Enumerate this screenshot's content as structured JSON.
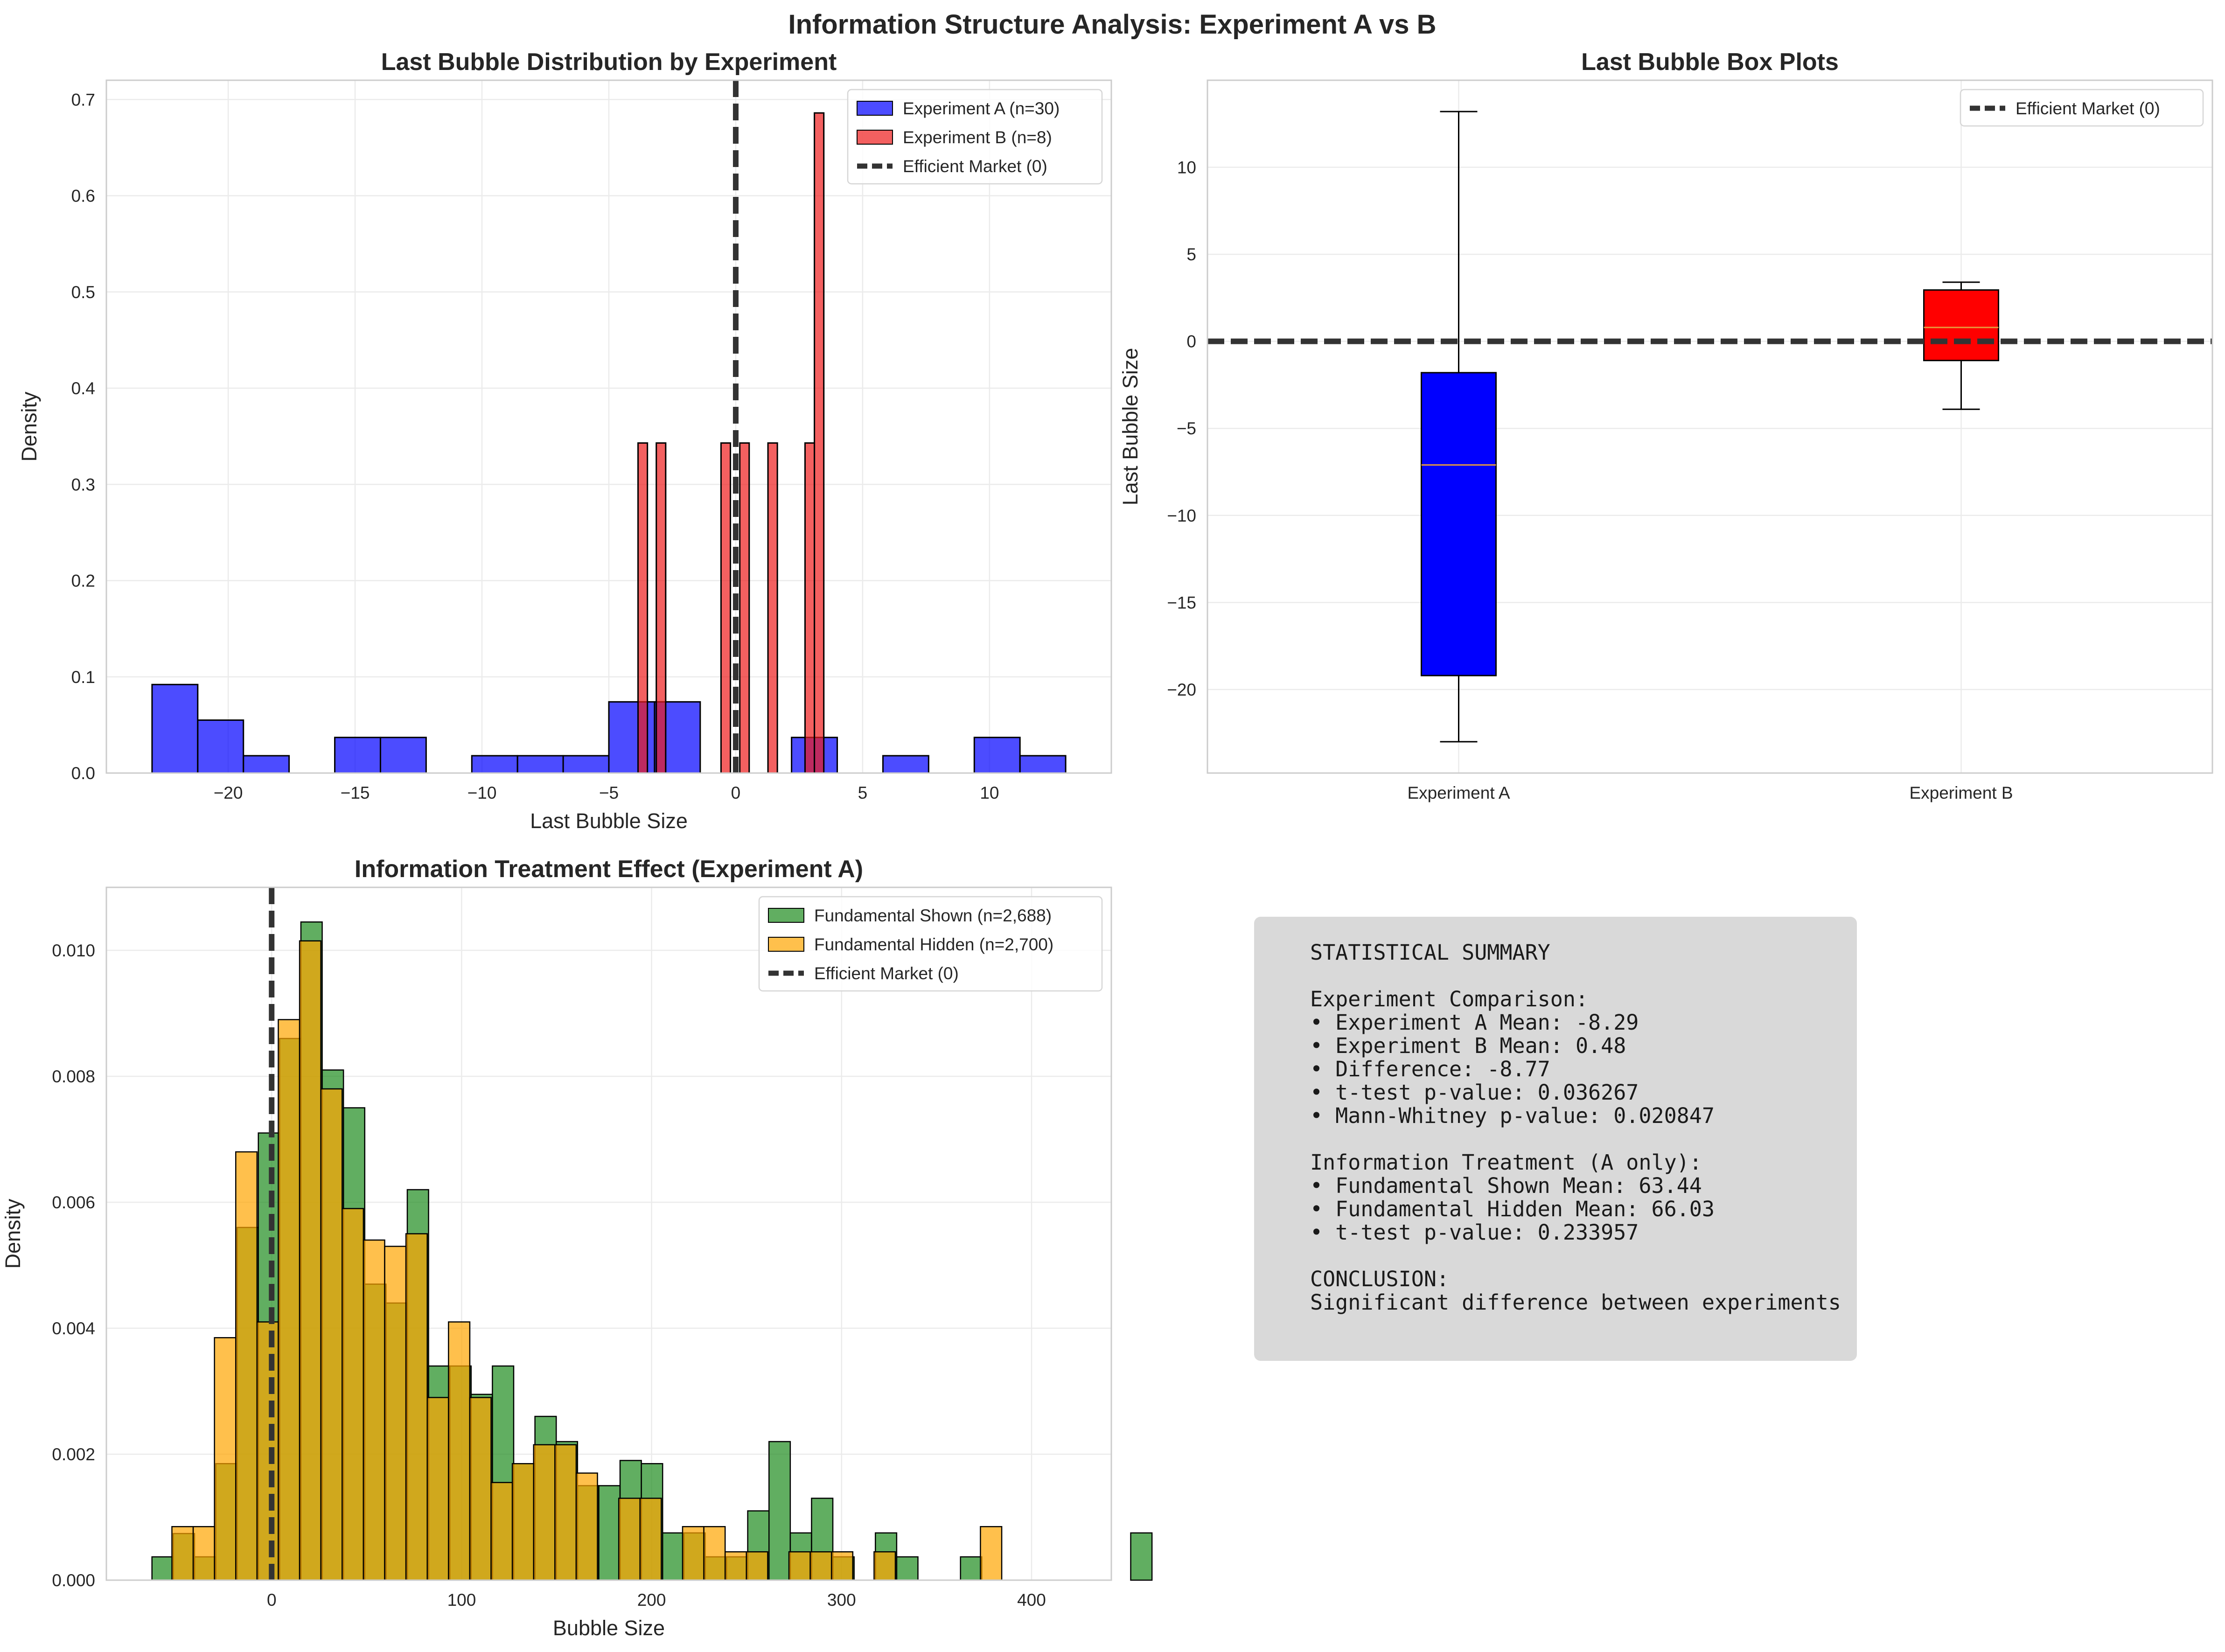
{
  "figure": {
    "title": "Information Structure Analysis: Experiment A vs B"
  },
  "chart_data": [
    {
      "id": "hist_last_bubble",
      "type": "bar",
      "title": "Last Bubble Distribution by Experiment",
      "xlabel": "Last Bubble Size",
      "ylabel": "Density",
      "xlim": [
        -24.8,
        14.8
      ],
      "ylim": [
        0,
        0.72
      ],
      "xticks": [
        -20,
        -15,
        -10,
        -5,
        0,
        5,
        10
      ],
      "yticks": [
        0.0,
        0.1,
        0.2,
        0.3,
        0.4,
        0.5,
        0.6,
        0.7
      ],
      "grid": true,
      "legend": "top-right",
      "vline": {
        "x": 0,
        "label": "Efficient Market (0)",
        "color": "#333333"
      },
      "series": [
        {
          "name": "Experiment A (n=30)",
          "color": "#0000ff",
          "bins": [
            {
              "x0": -23.0,
              "x1": -21.2,
              "y": 0.092
            },
            {
              "x0": -21.2,
              "x1": -19.4,
              "y": 0.055
            },
            {
              "x0": -19.4,
              "x1": -17.6,
              "y": 0.018
            },
            {
              "x0": -17.6,
              "x1": -15.8,
              "y": 0.0
            },
            {
              "x0": -15.8,
              "x1": -14.0,
              "y": 0.037
            },
            {
              "x0": -14.0,
              "x1": -12.2,
              "y": 0.037
            },
            {
              "x0": -12.2,
              "x1": -10.4,
              "y": 0.0
            },
            {
              "x0": -10.4,
              "x1": -8.6,
              "y": 0.018
            },
            {
              "x0": -8.6,
              "x1": -6.8,
              "y": 0.018
            },
            {
              "x0": -6.8,
              "x1": -5.0,
              "y": 0.018
            },
            {
              "x0": -5.0,
              "x1": -3.2,
              "y": 0.074
            },
            {
              "x0": -3.2,
              "x1": -1.4,
              "y": 0.074
            },
            {
              "x0": -1.4,
              "x1": 0.4,
              "y": 0.0
            },
            {
              "x0": 0.4,
              "x1": 2.2,
              "y": 0.0
            },
            {
              "x0": 2.2,
              "x1": 4.0,
              "y": 0.037
            },
            {
              "x0": 4.0,
              "x1": 5.8,
              "y": 0.0
            },
            {
              "x0": 5.8,
              "x1": 7.6,
              "y": 0.018
            },
            {
              "x0": 7.6,
              "x1": 9.4,
              "y": 0.0
            },
            {
              "x0": 9.4,
              "x1": 11.2,
              "y": 0.037
            },
            {
              "x0": 11.2,
              "x1": 13.0,
              "y": 0.018
            }
          ]
        },
        {
          "name": "Experiment B (n=8)",
          "color": "#ee1c1c",
          "bins": [
            {
              "x0": -3.85,
              "x1": -3.48,
              "y": 0.343
            },
            {
              "x0": -3.13,
              "x1": -2.76,
              "y": 0.343
            },
            {
              "x0": -0.58,
              "x1": -0.21,
              "y": 0.343
            },
            {
              "x0": 0.16,
              "x1": 0.53,
              "y": 0.343
            },
            {
              "x0": 1.27,
              "x1": 1.64,
              "y": 0.343
            },
            {
              "x0": 2.73,
              "x1": 3.1,
              "y": 0.343
            },
            {
              "x0": 3.1,
              "x1": 3.47,
              "y": 0.686
            }
          ]
        }
      ]
    },
    {
      "id": "box_last_bubble",
      "type": "box",
      "title": "Last Bubble Box Plots",
      "xlabel": "",
      "ylabel": "Last Bubble Size",
      "ylim": [
        -24.8,
        15.0
      ],
      "yticks": [
        -20,
        -15,
        -10,
        -5,
        0,
        5,
        10
      ],
      "grid": true,
      "legend": "top-right",
      "hline": {
        "y": 0,
        "label": "Efficient Market (0)",
        "color": "#333333"
      },
      "categories": [
        "Experiment A",
        "Experiment B"
      ],
      "boxes": [
        {
          "name": "Experiment A",
          "color": "#0000ff",
          "whislo": -23.0,
          "q1": -19.2,
          "med": -7.1,
          "q3": -1.8,
          "whishi": 13.2
        },
        {
          "name": "Experiment B",
          "color": "#ff0000",
          "whislo": -3.9,
          "q1": -1.1,
          "med": 0.8,
          "q3": 2.95,
          "whishi": 3.4
        }
      ]
    },
    {
      "id": "hist_treatment",
      "type": "bar",
      "title": "Information Treatment Effect (Experiment A)",
      "xlabel": "Bubble Size",
      "ylabel": "Density",
      "xlim": [
        -87,
        442
      ],
      "ylim": [
        0,
        0.011
      ],
      "xticks": [
        0,
        100,
        200,
        300,
        400
      ],
      "yticks": [
        0.0,
        0.002,
        0.004,
        0.006,
        0.008,
        0.01
      ],
      "grid": true,
      "legend": "top-right",
      "vline": {
        "x": 0,
        "label": "Efficient Market (0)",
        "color": "#333333"
      },
      "series": [
        {
          "name": "Fundamental Shown (n=2,688)",
          "color": "#1e8c1e",
          "start": -63,
          "width": 11.2,
          "values": [
            0.00037,
            0.00074,
            0.00037,
            0.00185,
            0.0056,
            0.0071,
            0.0086,
            0.01045,
            0.0081,
            0.0075,
            0.0047,
            0.0044,
            0.0062,
            0.0034,
            0.0034,
            0.00295,
            0.0034,
            0.00185,
            0.0026,
            0.0022,
            0.0015,
            0.0015,
            0.0019,
            0.00185,
            0.00075,
            0.00075,
            0.00037,
            0.00037,
            0.0011,
            0.0022,
            0.00075,
            0.0013,
            0.00037,
            0.0,
            0.00075,
            0.00037,
            0.0,
            0.0,
            0.00037,
            0.0,
            0.0,
            0.0,
            0.0,
            0.0,
            0.0,
            0.0,
            0.00075
          ]
        },
        {
          "name": "Fundamental Hidden (n=2,700)",
          "color": "#ffa500",
          "start": -52.5,
          "width": 11.2,
          "values": [
            0.00085,
            0.00085,
            0.00385,
            0.0068,
            0.0041,
            0.0089,
            0.01015,
            0.0078,
            0.0059,
            0.0054,
            0.0053,
            0.0055,
            0.0029,
            0.0041,
            0.0029,
            0.00155,
            0.00185,
            0.00215,
            0.00215,
            0.0017,
            0.0,
            0.0013,
            0.0013,
            0.0,
            0.00085,
            0.00085,
            0.00045,
            0.00045,
            0.0,
            0.00045,
            0.00045,
            0.00045,
            0.0,
            0.00045,
            0.0,
            0.0,
            0.0,
            0.0,
            0.00085
          ]
        }
      ]
    }
  ],
  "summary": {
    "lines": [
      "STATISTICAL SUMMARY",
      "",
      "Experiment Comparison:",
      "• Experiment A Mean: -8.29",
      "• Experiment B Mean: 0.48",
      "• Difference: -8.77",
      "• t-test p-value: 0.036267",
      "• Mann-Whitney p-value: 0.020847",
      "",
      "Information Treatment (A only):",
      "• Fundamental Shown Mean: 63.44",
      "• Fundamental Hidden Mean: 66.03",
      "• t-test p-value: 0.233957",
      "",
      "CONCLUSION:",
      "Significant difference between experiments"
    ]
  }
}
